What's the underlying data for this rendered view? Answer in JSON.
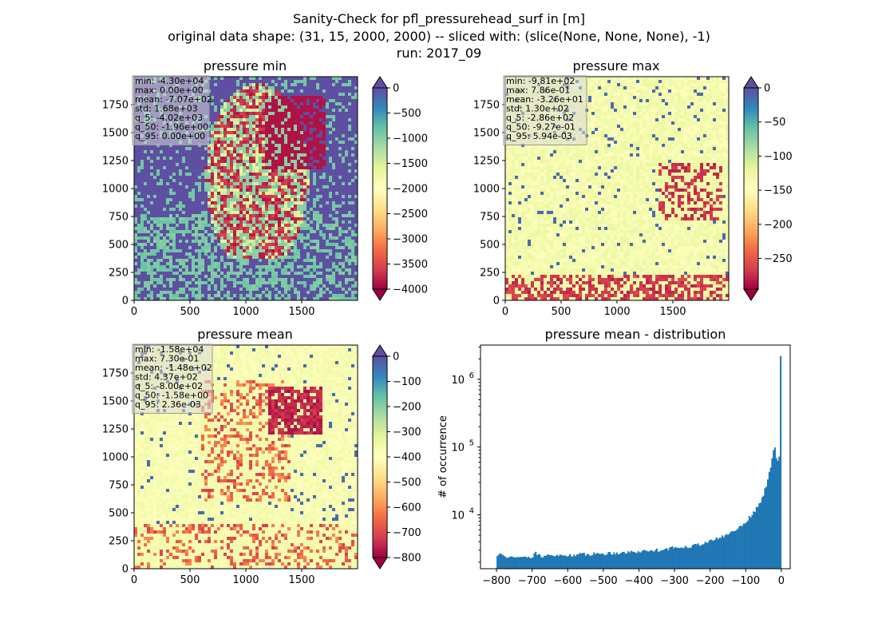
{
  "figure": {
    "title_lines": [
      "Sanity-Check for pfl_pressurehead_surf in [m]",
      "original data shape: (31, 15, 2000, 2000) -- sliced with: (slice(None, None, None), -1)",
      "run: 2017_09"
    ]
  },
  "chart_data": [
    {
      "type": "heatmap",
      "title": "pressure min",
      "colormap": "Spectral",
      "xlim": [
        0,
        2000
      ],
      "ylim": [
        0,
        2000
      ],
      "xticks": [
        0,
        500,
        1000,
        1500
      ],
      "yticks": [
        0,
        250,
        500,
        750,
        1000,
        1250,
        1500,
        1750
      ],
      "colorbar": {
        "min": -4000,
        "max": 0,
        "ticks": [
          0,
          -500,
          -1000,
          -1500,
          -2000,
          -2500,
          -3000,
          -3500,
          -4000
        ],
        "extend": "both"
      },
      "stats": [
        "min: -4.30e+04",
        "max: 0.00e+00",
        "mean: -7.07e+02",
        "std: 1.68e+03",
        "q_5: -4.02e+03",
        "q_50: -1.96e+00",
        "q_95: 0.00e+00"
      ]
    },
    {
      "type": "heatmap",
      "title": "pressure max",
      "colormap": "Spectral",
      "xlim": [
        0,
        2000
      ],
      "ylim": [
        0,
        2000
      ],
      "xticks": [
        0,
        500,
        1000,
        1500
      ],
      "yticks": [
        0,
        250,
        500,
        750,
        1000,
        1250,
        1500,
        1750
      ],
      "colorbar": {
        "min": -295,
        "max": 0,
        "ticks": [
          0,
          -50,
          -100,
          -150,
          -200,
          -250
        ],
        "extend": "both"
      },
      "stats": [
        "min: -9.81e+02",
        "max: 7.86e-01",
        "mean: -3.26e+01",
        "std: 1.30e+02",
        "q_5: -2.86e+02",
        "q_50: -9.27e-01",
        "q_95: 5.94e-03"
      ]
    },
    {
      "type": "heatmap",
      "title": "pressure mean",
      "colormap": "Spectral",
      "xlim": [
        0,
        2000
      ],
      "ylim": [
        0,
        2000
      ],
      "xticks": [
        0,
        500,
        1000,
        1500
      ],
      "yticks": [
        0,
        250,
        500,
        750,
        1000,
        1250,
        1500,
        1750
      ],
      "colorbar": {
        "min": -800,
        "max": 0,
        "ticks": [
          0,
          -100,
          -200,
          -300,
          -400,
          -500,
          -600,
          -700,
          -800
        ],
        "extend": "both"
      },
      "stats": [
        "min: -1.58e+04",
        "max: 7.30e-01",
        "mean: -1.48e+02",
        "std: 4.37e+02",
        "q_5: -8.00e+02",
        "q_50: -1.58e+00",
        "q_95: 2.36e-03"
      ]
    },
    {
      "type": "bar",
      "title": "pressure mean - distribution",
      "ylabel": "# of occurrence",
      "yscale": "log",
      "xlim": [
        -845,
        25
      ],
      "ylim": [
        1600,
        3200000
      ],
      "xticks": [
        -800,
        -700,
        -600,
        -500,
        -400,
        -300,
        -200,
        -100,
        0
      ],
      "yticks": [
        10000,
        100000,
        1000000
      ],
      "ytick_labels": [
        [
          "10",
          "4"
        ],
        [
          "10",
          "5"
        ],
        [
          "10",
          "6"
        ]
      ],
      "bin_range": [
        -800,
        0
      ],
      "bin_width": 4,
      "bar_color": "#1f77b4",
      "curve_points": [
        [
          -800,
          2400
        ],
        [
          -790,
          2700
        ],
        [
          -780,
          2500
        ],
        [
          -770,
          2300
        ],
        [
          -760,
          2450
        ],
        [
          -750,
          2350
        ],
        [
          -700,
          2450
        ],
        [
          -690,
          2850
        ],
        [
          -680,
          2500
        ],
        [
          -650,
          2500
        ],
        [
          -600,
          2550
        ],
        [
          -550,
          2650
        ],
        [
          -500,
          2700
        ],
        [
          -450,
          2800
        ],
        [
          -400,
          2900
        ],
        [
          -350,
          3050
        ],
        [
          -300,
          3300
        ],
        [
          -250,
          3500
        ],
        [
          -200,
          4100
        ],
        [
          -150,
          5200
        ],
        [
          -120,
          6500
        ],
        [
          -100,
          8000
        ],
        [
          -80,
          10500
        ],
        [
          -60,
          15000
        ],
        [
          -50,
          20000
        ],
        [
          -40,
          30000
        ],
        [
          -32,
          48000
        ],
        [
          -28,
          58000
        ],
        [
          -24,
          80000
        ],
        [
          -20,
          100000
        ],
        [
          -16,
          90000
        ],
        [
          -12,
          60000
        ],
        [
          -8,
          60000
        ],
        [
          -4,
          90000
        ],
        [
          0,
          2200000
        ]
      ]
    }
  ]
}
